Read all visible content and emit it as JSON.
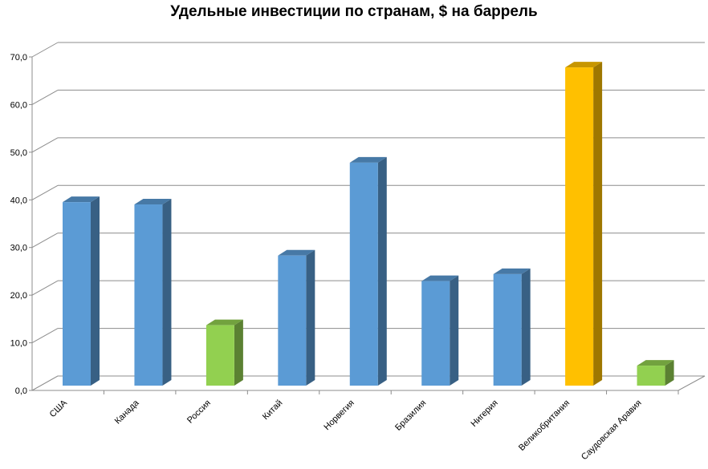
{
  "chart_data": {
    "type": "bar",
    "title": "Удельные инвестиции по странам, $ на баррель",
    "xlabel": "",
    "ylabel": "",
    "categories": [
      "США",
      "Канада",
      "Россия",
      "Китай",
      "Норвегия",
      "Бразилия",
      "Нигерия",
      "Великобритания",
      "Саудовская Аравия"
    ],
    "values": [
      39.5,
      39.0,
      13.0,
      28.0,
      48.0,
      22.5,
      24.0,
      68.5,
      4.3
    ],
    "bar_colors": [
      "#5B9BD5",
      "#5B9BD5",
      "#92D050",
      "#5B9BD5",
      "#5B9BD5",
      "#5B9BD5",
      "#5B9BD5",
      "#FFC000",
      "#92D050"
    ],
    "ylim": [
      0,
      70
    ],
    "yticks": [
      "0,0",
      "10,0",
      "20,0",
      "30,0",
      "40,0",
      "50,0",
      "60,0",
      "70,0"
    ],
    "grid": true,
    "legend": "none",
    "style": "3d-column"
  }
}
